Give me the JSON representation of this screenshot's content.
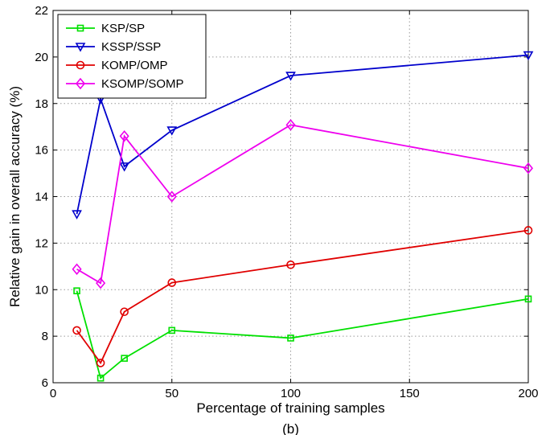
{
  "chart_data": {
    "type": "line",
    "xlabel": "Percentage of training samples",
    "ylabel": "Relative gain in overall accuracy (%)",
    "caption": "(b)",
    "xlim": [
      0,
      200
    ],
    "ylim": [
      6,
      22
    ],
    "xticks": [
      0,
      50,
      100,
      150,
      200
    ],
    "yticks": [
      6,
      8,
      10,
      12,
      14,
      16,
      18,
      20,
      22
    ],
    "xtick_labels": [
      "0",
      "50",
      "100",
      "150",
      "200"
    ],
    "ytick_labels": [
      "6",
      "8",
      "10",
      "12",
      "14",
      "16",
      "18",
      "20",
      "22"
    ],
    "grid": true,
    "legend_position": "top-left",
    "x": [
      10,
      20,
      30,
      50,
      100,
      200
    ],
    "series": [
      {
        "name": "KSP/SP",
        "color": "#00e000",
        "marker": "square",
        "values": [
          9.95,
          6.2,
          7.05,
          8.25,
          7.92,
          9.6
        ]
      },
      {
        "name": "KSSP/SSP",
        "color": "#0000cc",
        "marker": "triangle-down",
        "values": [
          13.25,
          18.2,
          15.3,
          16.85,
          19.2,
          20.08
        ]
      },
      {
        "name": "KOMP/OMP",
        "color": "#e00000",
        "marker": "circle",
        "values": [
          8.25,
          6.85,
          9.05,
          10.3,
          11.07,
          12.55
        ]
      },
      {
        "name": "KSOMP/SOMP",
        "color": "#ee00ee",
        "marker": "diamond",
        "values": [
          10.88,
          10.28,
          16.6,
          14.0,
          17.08,
          15.22
        ]
      }
    ]
  }
}
